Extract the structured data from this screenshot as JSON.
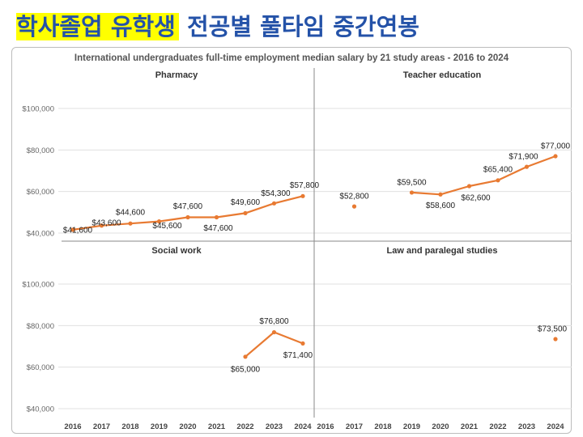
{
  "slide": {
    "title_highlight": "학사졸업 유학생",
    "title_rest": " 전공별 풀타임 중간연봉"
  },
  "colors": {
    "series": "#e87a32",
    "title_text": "#2452a8",
    "highlight": "#ffff00"
  },
  "chart_data": {
    "type": "line",
    "title": "International undergraduates full-time employment median salary by 21 study areas - 2016 to 2024",
    "x": [
      2016,
      2017,
      2018,
      2019,
      2020,
      2021,
      2022,
      2023,
      2024
    ],
    "ylim": [
      40000,
      100000
    ],
    "yticks": [
      40000,
      60000,
      80000,
      100000
    ],
    "ytick_labels": [
      "$40,000",
      "$60,000",
      "$80,000",
      "$100,000"
    ],
    "grid": true,
    "panels": [
      {
        "name": "Pharmacy",
        "values": [
          41600,
          43600,
          44600,
          45600,
          47600,
          47600,
          49600,
          54300,
          57800
        ],
        "labels": [
          "$41,600",
          "$43,600",
          "$44,600",
          "$45,600",
          "$47,600",
          "$47,600",
          "$49,600",
          "$54,300",
          "$57,800"
        ]
      },
      {
        "name": "Teacher education",
        "values": [
          null,
          52800,
          null,
          59500,
          58600,
          62600,
          65400,
          71900,
          77000
        ],
        "labels": [
          "",
          "$52,800",
          "",
          "$59,500",
          "$58,600",
          "$62,600",
          "$65,400",
          "$71,900",
          "$77,000"
        ]
      },
      {
        "name": "Social work",
        "values": [
          null,
          null,
          null,
          null,
          null,
          null,
          65000,
          76800,
          71400
        ],
        "labels": [
          "",
          "",
          "",
          "",
          "",
          "",
          "$65,000",
          "$76,800",
          "$71,400"
        ]
      },
      {
        "name": "Law and paralegal studies",
        "values": [
          null,
          null,
          null,
          null,
          null,
          null,
          null,
          null,
          73500
        ],
        "labels": [
          "",
          "",
          "",
          "",
          "",
          "",
          "",
          "",
          "$73,500"
        ]
      }
    ]
  }
}
